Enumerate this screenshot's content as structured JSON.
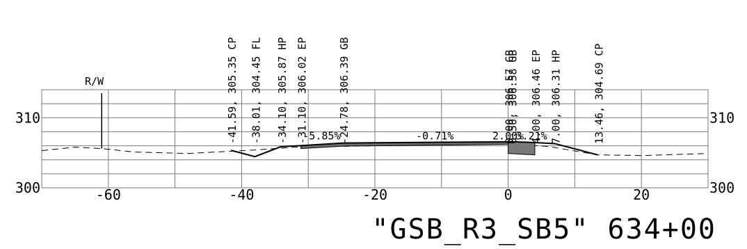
{
  "drawing": {
    "title": "\"GSB_R3_SB5\" 634+00",
    "row_label": "R/W"
  },
  "axes": {
    "x_ticks": [
      {
        "v": -60,
        "label": "-60"
      },
      {
        "v": -40,
        "label": "-40"
      },
      {
        "v": -20,
        "label": "-20"
      },
      {
        "v": 0,
        "label": "0"
      },
      {
        "v": 20,
        "label": "20"
      }
    ],
    "y_labels": [
      {
        "v": 310,
        "label": "310"
      },
      {
        "v": 300,
        "label": "300"
      }
    ],
    "x_range": [
      -70,
      30
    ],
    "y_range": [
      300,
      314
    ]
  },
  "callouts": [
    {
      "offset": -41.59,
      "text": "-41.59, 305.35 CP"
    },
    {
      "offset": -38.01,
      "text": "-38.01, 304.45 FL"
    },
    {
      "offset": -34.1,
      "text": "-34.10, 305.87 HP"
    },
    {
      "offset": -31.1,
      "text": "-31.10, 306.02 EP"
    },
    {
      "offset": -24.78,
      "text": "-24.78, 306.39 GB"
    },
    {
      "offset": 0.0,
      "text": "0.00, 306.57 GB"
    },
    {
      "offset": 0.5,
      "text": "0.50, 306.58 GB"
    },
    {
      "offset": 4.0,
      "text": "4.00, 306.46 EP"
    },
    {
      "offset": 7.0,
      "text": "7.00, 306.31 HP"
    },
    {
      "offset": 13.46,
      "text": "13.46, 304.69 CP"
    }
  ],
  "slopes": [
    {
      "at": -28,
      "elev": 306.9,
      "text": "-5.85%"
    },
    {
      "at": -11,
      "elev": 306.9,
      "text": "-0.71%"
    },
    {
      "at": 0,
      "elev": 306.9,
      "text": "2.00%"
    },
    {
      "at": 3.5,
      "elev": 306.9,
      "text": "3.21%"
    }
  ],
  "profiles": {
    "existing_ground": [
      [
        -70,
        305.3
      ],
      [
        -65,
        305.8
      ],
      [
        -61,
        305.6
      ],
      [
        -56,
        305.1
      ],
      [
        -48,
        304.9
      ],
      [
        -42,
        305.2
      ],
      [
        -38,
        305.4
      ],
      [
        -32,
        305.8
      ],
      [
        -20,
        306.0
      ],
      [
        0,
        306.3
      ],
      [
        6,
        305.9
      ],
      [
        13.46,
        304.7
      ],
      [
        20,
        304.6
      ],
      [
        30,
        304.9
      ]
    ],
    "design_surface": [
      [
        -41.59,
        305.35
      ],
      [
        -38.01,
        304.45
      ],
      [
        -34.1,
        305.87
      ],
      [
        -31.1,
        306.02
      ],
      [
        -24.78,
        306.39
      ],
      [
        0,
        306.57
      ],
      [
        0.5,
        306.58
      ],
      [
        4,
        306.46
      ],
      [
        7,
        306.31
      ],
      [
        13.46,
        304.69
      ]
    ],
    "row_marker_offset": -61
  }
}
